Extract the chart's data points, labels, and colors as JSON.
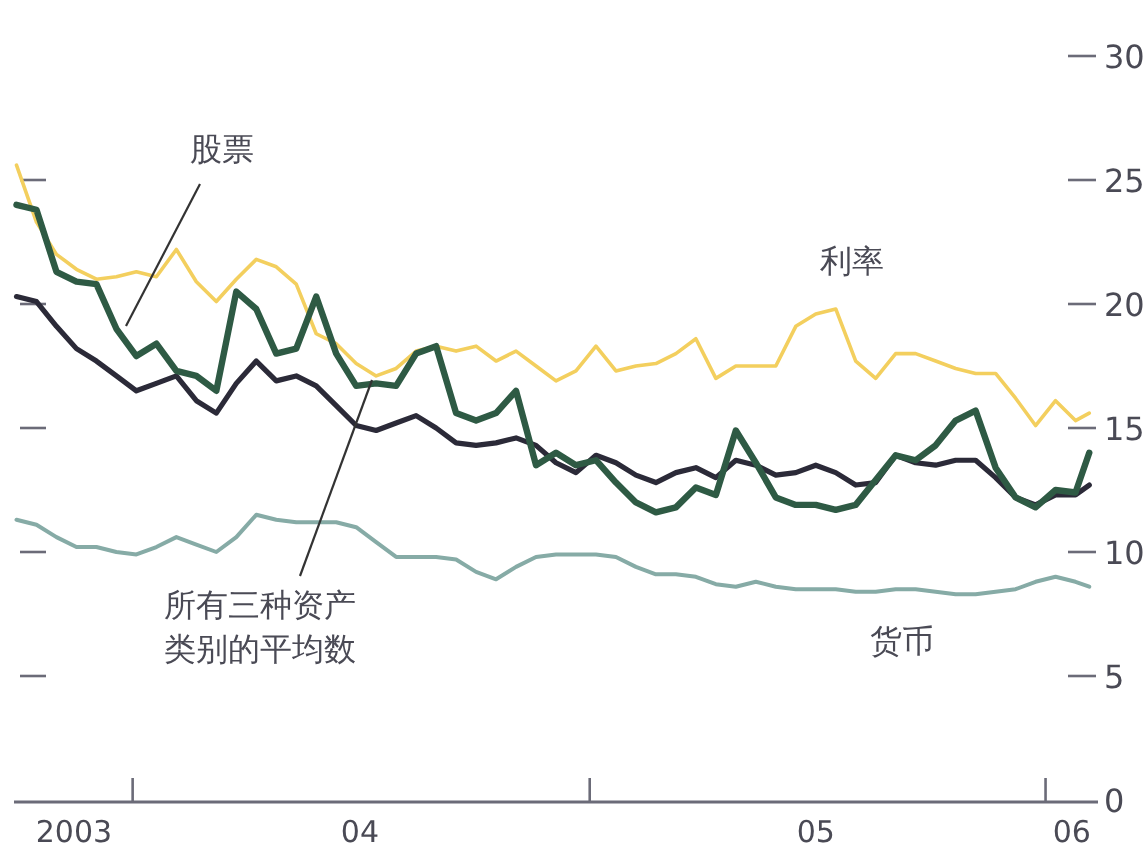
{
  "chart_data": {
    "type": "line",
    "legend": false,
    "grid": false,
    "x": [
      "2003-09-30",
      "2003-10-16",
      "2003-11-01",
      "2003-11-17",
      "2003-12-03",
      "2003-12-19",
      "2004-01-04",
      "2004-01-20",
      "2004-02-05",
      "2004-02-21",
      "2004-03-08",
      "2004-03-24",
      "2004-04-09",
      "2004-04-25",
      "2004-05-11",
      "2004-05-27",
      "2004-06-12",
      "2004-06-28",
      "2004-07-14",
      "2004-07-30",
      "2004-08-15",
      "2004-08-31",
      "2004-09-16",
      "2004-10-02",
      "2004-10-18",
      "2004-11-03",
      "2004-11-19",
      "2004-12-05",
      "2004-12-21",
      "2005-01-06",
      "2005-01-22",
      "2005-02-07",
      "2005-02-23",
      "2005-03-11",
      "2005-03-27",
      "2005-04-12",
      "2005-04-28",
      "2005-05-14",
      "2005-05-30",
      "2005-06-15",
      "2005-07-01",
      "2005-07-17",
      "2005-08-02",
      "2005-08-18",
      "2005-09-03",
      "2005-09-19",
      "2005-10-05",
      "2005-10-21",
      "2005-11-06",
      "2005-11-22",
      "2005-12-08",
      "2005-12-24",
      "2006-01-09",
      "2006-01-25",
      "2006-02-05"
    ],
    "xlim": [
      "2003-09-28",
      "2006-02-12"
    ],
    "xticks": [
      {
        "value": "2003-11-15",
        "label": "2003"
      },
      {
        "value": "2004-01-01",
        "label": null
      },
      {
        "value": "2004-07-01",
        "label": "04"
      },
      {
        "value": "2005-01-01",
        "label": null
      },
      {
        "value": "2005-07-01",
        "label": "05"
      },
      {
        "value": "2006-01-01",
        "label": null
      },
      {
        "value": "2006-01-22",
        "label": "06"
      }
    ],
    "ylim": [
      0,
      30
    ],
    "yticks": [
      0,
      5,
      10,
      15,
      20,
      25,
      30
    ],
    "series": [
      {
        "name": "利率",
        "color": "#f3cf5e",
        "values": [
          25.6,
          23.3,
          22.0,
          21.4,
          21.0,
          21.1,
          21.3,
          21.1,
          22.2,
          20.9,
          20.1,
          21.0,
          21.8,
          21.5,
          20.8,
          18.8,
          18.4,
          17.6,
          17.1,
          17.4,
          18.1,
          18.3,
          18.1,
          18.3,
          17.7,
          18.1,
          17.5,
          16.9,
          17.3,
          18.3,
          17.3,
          17.5,
          17.6,
          18.0,
          18.6,
          17.0,
          17.5,
          17.5,
          17.5,
          19.1,
          19.6,
          19.8,
          17.7,
          17.0,
          18.0,
          18.0,
          17.7,
          17.4,
          17.2,
          17.2,
          16.2,
          15.1,
          16.1,
          15.3,
          15.6
        ]
      },
      {
        "name": "货币",
        "color": "#86aba6",
        "values": [
          11.3,
          11.1,
          10.6,
          10.2,
          10.2,
          10.0,
          9.9,
          10.2,
          10.6,
          10.3,
          10.0,
          10.6,
          11.5,
          11.3,
          11.2,
          11.2,
          11.2,
          11.0,
          10.4,
          9.8,
          9.8,
          9.8,
          9.7,
          9.2,
          8.9,
          9.4,
          9.8,
          9.9,
          9.9,
          9.9,
          9.8,
          9.4,
          9.1,
          9.1,
          9.0,
          8.7,
          8.6,
          8.8,
          8.6,
          8.5,
          8.5,
          8.5,
          8.4,
          8.4,
          8.5,
          8.5,
          8.4,
          8.3,
          8.3,
          8.4,
          8.5,
          8.8,
          9.0,
          8.8,
          8.6
        ]
      },
      {
        "name": "所有三种资产类别的平均数",
        "color": "#2b2a38",
        "values": [
          20.3,
          20.1,
          19.1,
          18.2,
          17.7,
          17.1,
          16.5,
          16.8,
          17.1,
          16.1,
          15.6,
          16.8,
          17.7,
          16.9,
          17.1,
          16.7,
          15.9,
          15.1,
          14.9,
          15.2,
          15.5,
          15.0,
          14.4,
          14.3,
          14.4,
          14.6,
          14.3,
          13.6,
          13.2,
          13.9,
          13.6,
          13.1,
          12.8,
          13.2,
          13.4,
          13.0,
          13.7,
          13.5,
          13.1,
          13.2,
          13.5,
          13.2,
          12.7,
          12.8,
          13.9,
          13.6,
          13.5,
          13.7,
          13.7,
          13.0,
          12.2,
          11.9,
          12.3,
          12.3,
          12.7
        ]
      },
      {
        "name": "股票",
        "color": "#2e5a44",
        "values": [
          24.0,
          23.8,
          21.3,
          20.9,
          20.8,
          19.0,
          17.9,
          18.4,
          17.3,
          17.1,
          16.5,
          20.5,
          19.8,
          18.0,
          18.2,
          20.3,
          18.0,
          16.7,
          16.8,
          16.7,
          18.0,
          18.3,
          15.6,
          15.3,
          15.6,
          16.5,
          13.5,
          14.0,
          13.5,
          13.7,
          12.8,
          12.0,
          11.6,
          11.8,
          12.6,
          12.3,
          14.9,
          13.6,
          12.2,
          11.9,
          11.9,
          11.7,
          11.9,
          12.9,
          13.9,
          13.7,
          14.3,
          15.3,
          15.7,
          13.4,
          12.2,
          11.8,
          12.5,
          12.4,
          14.0
        ]
      }
    ]
  }
}
